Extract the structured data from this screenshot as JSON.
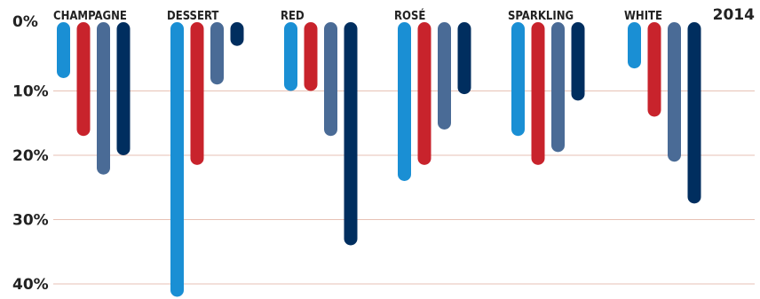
{
  "chart_data": {
    "type": "bar",
    "orientation": "vertical-downward",
    "title": "2014",
    "categories": [
      "CHAMPAGNE",
      "DESSERT",
      "RED",
      "ROSÉ",
      "SPARKLING",
      "WHITE"
    ],
    "series": [
      {
        "color": "#1a8fd4",
        "values": [
          8,
          42,
          10,
          24,
          17,
          6.5
        ]
      },
      {
        "color": "#c8232c",
        "values": [
          17,
          21.5,
          10,
          21.5,
          21.5,
          14
        ]
      },
      {
        "color": "#4a6b96",
        "values": [
          23,
          9,
          17,
          16,
          19.5,
          21
        ]
      },
      {
        "color": "#002e5f",
        "values": [
          20,
          3,
          34,
          10.5,
          11.5,
          27.5
        ]
      }
    ],
    "yticks": [
      "0%",
      "10%",
      "20%",
      "30%",
      "40%"
    ],
    "ytick_values": [
      0,
      10,
      20,
      30,
      40
    ],
    "ylim": [
      0,
      42
    ],
    "grid": true,
    "xlabel": "",
    "ylabel": ""
  }
}
